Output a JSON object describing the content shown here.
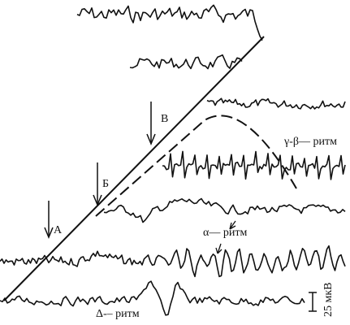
{
  "labels": {
    "a": "А",
    "b": "Б",
    "v": "В",
    "gamma_beta": "γ-β— ритм",
    "alpha": "α— ритм",
    "delta": "Δ-– ритм",
    "scale": "25 мкВ"
  }
}
